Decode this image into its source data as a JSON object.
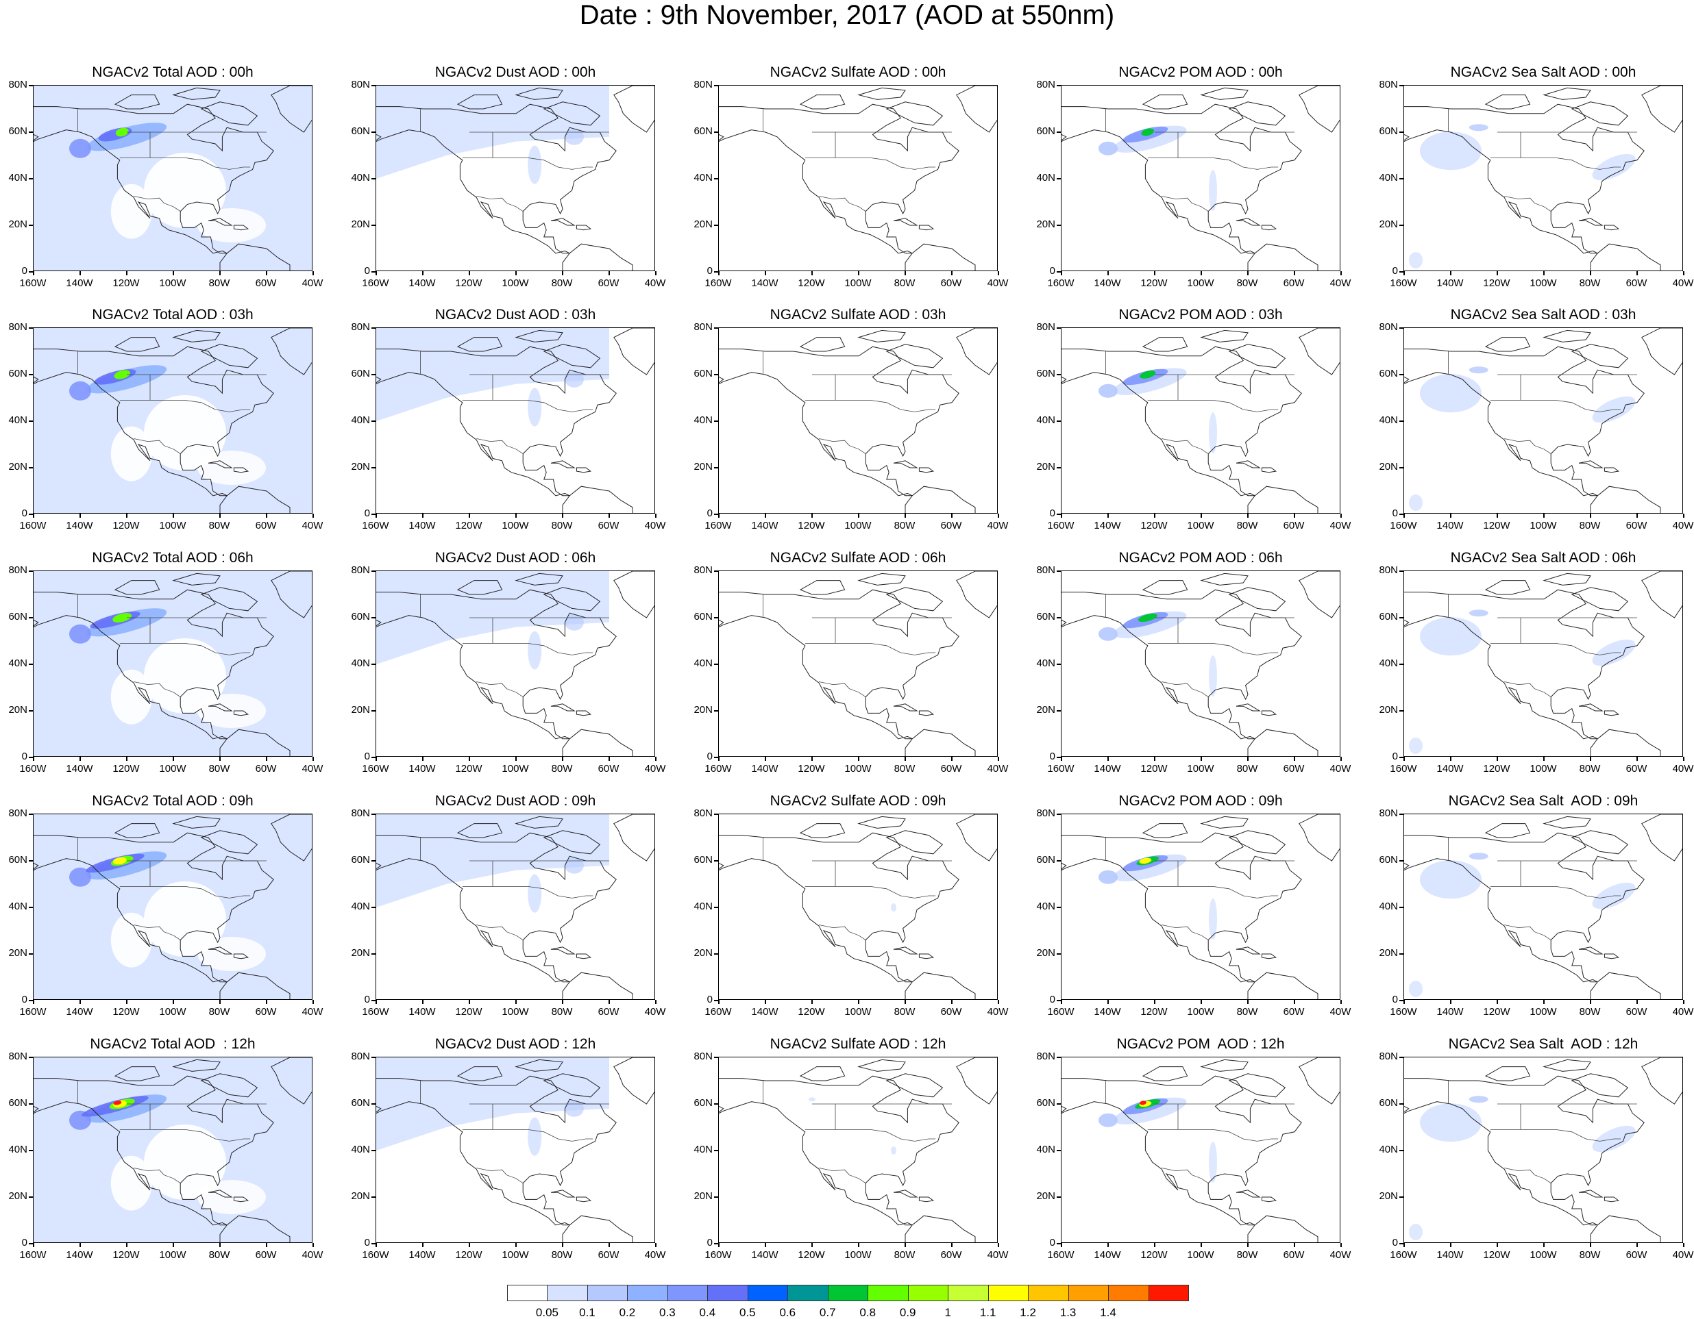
{
  "title": "Date : 9th November, 2017 (AOD at 550nm)",
  "panel_titles": [
    [
      "NGACv2 Total AOD : 00h",
      "NGACv2 Dust AOD : 00h",
      "NGACv2 Sulfate AOD : 00h",
      "NGACv2 POM AOD : 00h",
      "NGACv2 Sea Salt AOD : 00h"
    ],
    [
      "NGACv2 Total AOD : 03h",
      "NGACv2 Dust AOD : 03h",
      "NGACv2 Sulfate AOD : 03h",
      "NGACv2 POM AOD : 03h",
      "NGACv2 Sea Salt AOD : 03h"
    ],
    [
      "NGACv2 Total AOD : 06h",
      "NGACv2 Dust AOD : 06h",
      "NGACv2 Sulfate AOD : 06h",
      "NGACv2 POM AOD : 06h",
      "NGACv2 Sea Salt AOD : 06h"
    ],
    [
      "NGACv2 Total AOD : 09h",
      "NGACv2 Dust AOD : 09h",
      "NGACv2 Sulfate AOD : 09h",
      "NGACv2 POM AOD : 09h",
      "NGACv2 Sea Salt  AOD : 09h"
    ],
    [
      "NGACv2 Total AOD  : 12h",
      "NGACv2 Dust AOD : 12h",
      "NGACv2 Sulfate AOD : 12h",
      "NGACv2 POM  AOD : 12h",
      "NGACv2 Sea Salt  AOD : 12h"
    ]
  ],
  "lat_ticks": [
    "80N",
    "60N",
    "40N",
    "20N",
    "0"
  ],
  "lon_ticks": [
    "160W",
    "140W",
    "120W",
    "100W",
    "80W",
    "60W",
    "40W"
  ],
  "colorbar": {
    "colors": [
      "#ffffff",
      "#d6e2ff",
      "#b5c9ff",
      "#8eb2ff",
      "#7f96ff",
      "#6370f8",
      "#0063ff",
      "#009696",
      "#00c633",
      "#63ff00",
      "#96ff00",
      "#c6ff33",
      "#ffff00",
      "#ffc600",
      "#ffa000",
      "#ff7c00",
      "#ff1900"
    ],
    "labels": [
      "0.05",
      "0.1",
      "0.2",
      "0.3",
      "0.4",
      "0.5",
      "0.6",
      "0.7",
      "0.8",
      "0.9",
      "1",
      "1.1",
      "1.2",
      "1.3",
      "1.4"
    ]
  }
}
